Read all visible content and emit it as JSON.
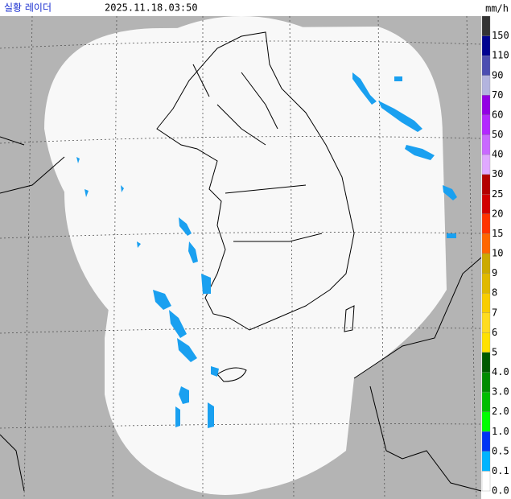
{
  "header": {
    "title": "실황 레이더",
    "timestamp": "2025.11.18.03:50",
    "unit": "mm/h"
  },
  "legend": [
    {
      "label": "150",
      "color": "#333333"
    },
    {
      "label": "110",
      "color": "#000390"
    },
    {
      "label": "90",
      "color": "#4c4eb1"
    },
    {
      "label": "70",
      "color": "#b3b4de"
    },
    {
      "label": "60",
      "color": "#9300e4"
    },
    {
      "label": "50",
      "color": "#b329ff"
    },
    {
      "label": "40",
      "color": "#c969ff"
    },
    {
      "label": "30",
      "color": "#e0a9ff"
    },
    {
      "label": "25",
      "color": "#b40000"
    },
    {
      "label": "20",
      "color": "#d20000"
    },
    {
      "label": "15",
      "color": "#ff3300"
    },
    {
      "label": "10",
      "color": "#ff6600"
    },
    {
      "label": "9",
      "color": "#ccaa00"
    },
    {
      "label": "8",
      "color": "#e0b900"
    },
    {
      "label": "7",
      "color": "#f9cd00"
    },
    {
      "label": "6",
      "color": "#ffdc1f"
    },
    {
      "label": "5",
      "color": "#ffe100"
    },
    {
      "label": "4.0",
      "color": "#005a00"
    },
    {
      "label": "3.0",
      "color": "#008c00"
    },
    {
      "label": "2.0",
      "color": "#00be00"
    },
    {
      "label": "1.0",
      "color": "#00ff00"
    },
    {
      "label": "0.5",
      "color": "#0033f5"
    },
    {
      "label": "0.1",
      "color": "#00b4ff"
    },
    {
      "label": "0.0",
      "color": "#ffffff"
    }
  ]
}
